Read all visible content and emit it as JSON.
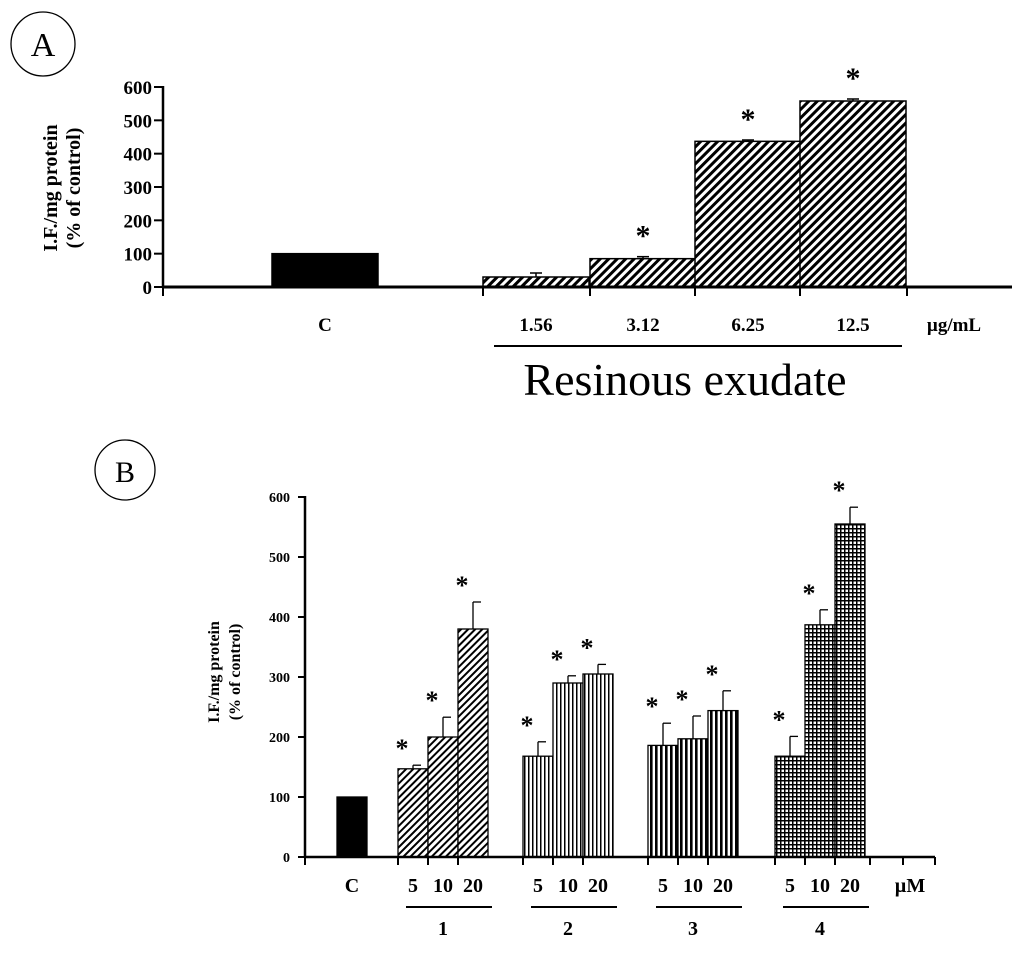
{
  "chart_data": [
    {
      "panel_label": "A",
      "type": "bar",
      "ylabel_lines": [
        "I.F./mg protein",
        "(% of control)"
      ],
      "ylim": [
        0,
        600
      ],
      "yticks": [
        "0",
        "100",
        "200",
        "300",
        "400",
        "500",
        "600"
      ],
      "categories": [
        "C",
        "1.56",
        "3.12",
        "6.25",
        "12.5"
      ],
      "values": [
        100,
        30,
        85,
        437,
        558
      ],
      "errors": [
        0,
        12,
        6,
        4,
        6
      ],
      "significant": [
        false,
        false,
        true,
        true,
        true
      ],
      "unit_label": "µg/mL",
      "group_label": "Resinous exudate",
      "control_color": "#000000"
    },
    {
      "panel_label": "B",
      "type": "bar",
      "ylabel_lines": [
        "I.F./mg protein",
        "(% of control)"
      ],
      "ylim": [
        0,
        600
      ],
      "yticks": [
        "0",
        "100",
        "200",
        "300",
        "400",
        "500",
        "600"
      ],
      "control": {
        "label": "C",
        "value": 100
      },
      "groups": [
        {
          "name": "1",
          "doses": [
            "5",
            "10",
            "20"
          ],
          "values": [
            147,
            200,
            380
          ],
          "errors": [
            6,
            33,
            45
          ],
          "significant": [
            true,
            true,
            true
          ],
          "pattern": "diagonal"
        },
        {
          "name": "2",
          "doses": [
            "5",
            "10",
            "20"
          ],
          "values": [
            168,
            290,
            305
          ],
          "errors": [
            24,
            12,
            16
          ],
          "significant": [
            true,
            true,
            true
          ],
          "pattern": "vertical"
        },
        {
          "name": "3",
          "doses": [
            "5",
            "10",
            "20"
          ],
          "values": [
            186,
            197,
            244
          ],
          "errors": [
            37,
            38,
            33
          ],
          "significant": [
            true,
            true,
            true
          ],
          "pattern": "vertical-bold"
        },
        {
          "name": "4",
          "doses": [
            "5",
            "10",
            "20"
          ],
          "values": [
            168,
            387,
            555
          ],
          "errors": [
            33,
            25,
            28
          ],
          "significant": [
            true,
            true,
            true
          ],
          "pattern": "grid"
        }
      ],
      "unit_label": "µM",
      "control_color": "#000000"
    }
  ]
}
